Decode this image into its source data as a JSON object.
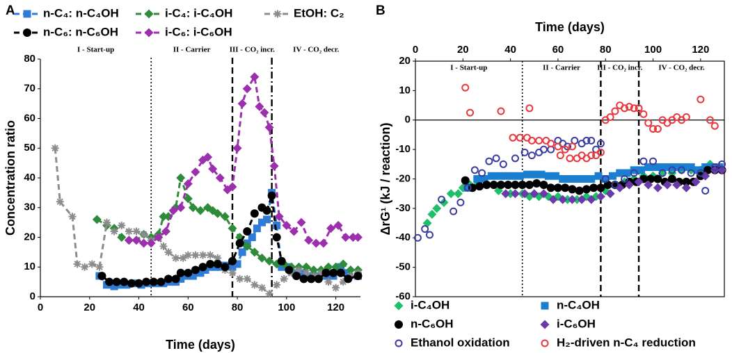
{
  "chart_data": [
    {
      "type": "line",
      "panel": "A",
      "xlabel": "Time (days)",
      "ylabel": "Concentration ratio",
      "xlim": [
        0,
        130
      ],
      "xticks": [
        0,
        20,
        40,
        60,
        80,
        100,
        120
      ],
      "ylim": [
        0,
        80
      ],
      "yticks": [
        0,
        10,
        20,
        30,
        40,
        50,
        60,
        70,
        80
      ],
      "legend": "top",
      "grid": false,
      "frame": false,
      "x_axis_position": "bottom",
      "phases": [
        "I - Start-up",
        "II - Carrier",
        "III - CO₂ incr.",
        "IV - CO₂ decr."
      ],
      "phase_lines": [
        {
          "x": 45,
          "style": "dotted"
        },
        {
          "x": 78,
          "style": "dashed"
        },
        {
          "x": 94,
          "style": "dashdot"
        }
      ],
      "series": [
        {
          "name": "n-C₄: n-C₄OH",
          "color": "#2f7bd6",
          "marker": "square",
          "x": [
            24,
            27,
            30,
            32,
            35,
            38,
            41,
            44,
            47,
            50,
            52,
            55,
            57,
            60,
            62,
            65,
            67,
            69,
            71,
            73,
            75,
            78,
            80,
            82,
            84,
            86,
            88,
            90,
            92,
            94,
            96,
            98,
            101,
            104,
            107,
            110,
            113,
            116,
            119,
            122,
            125,
            129
          ],
          "values": [
            7,
            4,
            3.5,
            4,
            4,
            4.5,
            4,
            4.5,
            4.5,
            4.5,
            5,
            5,
            6,
            7,
            7,
            8,
            9,
            10,
            10,
            10,
            10.5,
            10,
            11,
            15,
            18,
            20,
            23,
            25,
            26,
            35,
            24,
            10,
            10,
            8,
            8,
            7,
            7,
            7,
            7,
            10,
            8,
            7
          ]
        },
        {
          "name": "i-C₄: i-C₄OH",
          "color": "#2e8b3a",
          "marker": "diamond",
          "x": [
            23,
            27,
            30,
            33,
            36,
            39,
            42,
            45,
            48,
            50,
            52,
            55,
            57,
            60,
            62,
            65,
            68,
            70,
            72,
            75,
            78,
            81,
            84,
            87,
            90,
            93,
            96,
            99,
            102,
            105,
            108,
            111,
            114,
            117,
            120,
            123,
            126,
            129
          ],
          "values": [
            26,
            24,
            23,
            20,
            19,
            19,
            21,
            20,
            21,
            27,
            27,
            30,
            40,
            33,
            30,
            29,
            30,
            29,
            28,
            27,
            23,
            20,
            17,
            15,
            13,
            12,
            11,
            11,
            10,
            10,
            10,
            9,
            9,
            10,
            10,
            11,
            9,
            9
          ]
        },
        {
          "name": "EtOH: C₂",
          "color": "#8c8c8c",
          "marker": "asterisk",
          "x": [
            6,
            8,
            13,
            15,
            18,
            21,
            24,
            27,
            30,
            33,
            36,
            39,
            42,
            45,
            48,
            50,
            52,
            55,
            58,
            60,
            63,
            66,
            69,
            72,
            75,
            78,
            81,
            84,
            87,
            90,
            93,
            96,
            99,
            102,
            105,
            108,
            111,
            114,
            117,
            120,
            123,
            126,
            129
          ],
          "values": [
            50,
            32,
            27,
            11,
            10,
            11,
            10,
            25,
            22,
            24,
            22,
            22,
            21,
            19,
            20,
            17,
            15,
            13,
            13,
            14,
            14,
            14,
            14,
            13,
            9,
            8,
            6,
            6,
            4,
            3,
            1,
            4,
            6,
            8,
            9,
            8,
            7,
            8,
            5,
            3,
            5,
            7,
            8
          ]
        },
        {
          "name": "n-C₆: n-C₆OH",
          "color": "#000000",
          "marker": "circle",
          "x": [
            25,
            28,
            31,
            34,
            37,
            40,
            43,
            46,
            49,
            52,
            55,
            57,
            60,
            63,
            66,
            69,
            72,
            75,
            78,
            81,
            84,
            87,
            90,
            92,
            94,
            96,
            98,
            101,
            104,
            107,
            110,
            113,
            116,
            119,
            122,
            125,
            129
          ],
          "values": [
            7,
            5,
            5,
            5,
            4.5,
            4.5,
            5,
            5,
            5,
            6,
            6,
            8,
            8,
            9,
            10,
            11,
            11,
            10,
            12,
            18,
            22,
            28,
            30,
            29,
            34,
            20,
            12,
            9,
            7,
            6,
            6,
            6,
            8,
            8,
            8,
            6,
            7
          ]
        },
        {
          "name": "i-C₆: i-C₆OH",
          "color": "#9b2fae",
          "marker": "diamond",
          "x": [
            36,
            39,
            42,
            45,
            48,
            51,
            54,
            57,
            60,
            63,
            66,
            68,
            70,
            73,
            76,
            78,
            80,
            82,
            84,
            87,
            89,
            91,
            93,
            95,
            97,
            100,
            103,
            106,
            109,
            112,
            115,
            118,
            121,
            124,
            127,
            129
          ],
          "values": [
            19,
            19,
            18,
            18,
            20,
            22,
            29,
            30,
            38,
            42,
            46,
            47,
            43,
            40,
            36,
            37,
            50,
            65,
            70,
            74,
            64,
            62,
            57,
            44,
            27,
            24,
            22,
            25,
            19,
            18,
            18,
            23,
            24,
            20,
            20,
            20
          ]
        }
      ]
    },
    {
      "type": "scatter",
      "panel": "B",
      "xlabel": "Time (days)",
      "ylabel": "ΔrG¹ (kJ / reaction)",
      "xlim": [
        0,
        130
      ],
      "xticks": [
        0,
        20,
        40,
        60,
        80,
        100,
        120
      ],
      "ylim": [
        -60,
        20
      ],
      "yticks": [
        -60,
        -50,
        -40,
        -30,
        -20,
        -10,
        0,
        10,
        20
      ],
      "legend": "bottom",
      "grid": false,
      "frame": true,
      "zero_line": true,
      "x_axis_position": "top",
      "phases": [
        "I - Start-up",
        "II - Carrier",
        "III - CO₂ incr.",
        "IV - CO₂ decr."
      ],
      "phase_lines": [
        {
          "x": 45,
          "style": "dotted"
        },
        {
          "x": 78,
          "style": "dashed"
        },
        {
          "x": 94,
          "style": "dashed"
        }
      ],
      "series": [
        {
          "name": "i-C₄OH",
          "color": "#1fbf6a",
          "marker": "diamond",
          "x": [
            5,
            7,
            9,
            12,
            15,
            18,
            20,
            23,
            26,
            30,
            35,
            40,
            45,
            48,
            52,
            56,
            60,
            64,
            68,
            72,
            76,
            80,
            84,
            88,
            92,
            96,
            100,
            104,
            108,
            112,
            116,
            120,
            124,
            128
          ],
          "values": [
            -35,
            -32,
            -30,
            -28,
            -25,
            -25,
            -23,
            -22,
            -22,
            -22,
            -24,
            -25,
            -25,
            -26,
            -26,
            -26,
            -26,
            -27,
            -27,
            -26,
            -26,
            -24,
            -22,
            -21,
            -20,
            -19,
            -19,
            -18,
            -18,
            -17,
            -17,
            -17,
            -15,
            -16
          ]
        },
        {
          "name": "n-C₄OH",
          "color": "#1b7fd1",
          "marker": "square",
          "x": [
            22,
            26,
            29,
            32,
            35,
            38,
            41,
            44,
            47,
            50,
            53,
            56,
            59,
            62,
            65,
            68,
            71,
            74,
            77,
            80,
            83,
            86,
            89,
            92,
            95,
            98,
            101,
            104,
            107,
            110,
            113,
            116,
            119,
            122,
            125,
            128
          ],
          "values": [
            -23,
            -20,
            -20,
            -19,
            -19,
            -19,
            -19,
            -19,
            -18.5,
            -18.5,
            -18.5,
            -19,
            -19,
            -20,
            -20,
            -20,
            -20,
            -20,
            -19,
            -20,
            -19,
            -18,
            -18,
            -17,
            -17,
            -16,
            -16,
            -16,
            -16,
            -16,
            -16,
            -16,
            -17,
            -16,
            -16,
            -16
          ]
        },
        {
          "name": "n-C₆OH",
          "color": "#000000",
          "marker": "circle",
          "x": [
            21,
            24,
            27,
            30,
            33,
            36,
            39,
            42,
            45,
            48,
            51,
            54,
            57,
            60,
            63,
            66,
            69,
            72,
            75,
            78,
            81,
            84,
            87,
            90,
            93,
            96,
            99,
            102,
            105,
            108,
            111,
            114,
            117,
            120,
            123,
            126,
            129
          ],
          "values": [
            -20.5,
            -23,
            -22.5,
            -22,
            -22,
            -22,
            -22,
            -22,
            -22,
            -22,
            -21.5,
            -22,
            -23,
            -23,
            -23,
            -23.5,
            -24,
            -23.5,
            -23,
            -23,
            -22,
            -22,
            -22,
            -21,
            -21,
            -20,
            -20,
            -20,
            -21,
            -20,
            -21,
            -21,
            -21,
            -19,
            -17,
            -17,
            -17
          ]
        },
        {
          "name": "i-C₆OH",
          "color": "#6a3aa8",
          "marker": "diamond",
          "x": [
            38,
            42,
            46,
            50,
            54,
            58,
            62,
            66,
            70,
            74,
            78,
            82,
            86,
            90,
            94,
            98,
            102,
            106,
            110,
            114,
            118,
            122,
            126,
            129
          ],
          "values": [
            -25,
            -25,
            -25,
            -25,
            -25,
            -27,
            -27,
            -27,
            -27,
            -27,
            -26,
            -25,
            -23,
            -22,
            -21,
            -22,
            -23,
            -22,
            -22,
            -23,
            -21,
            -19,
            -17,
            -17
          ]
        },
        {
          "name": "Ethanol oxidation",
          "color": "#3b3ba0",
          "marker": "open-circle",
          "x": [
            1,
            4,
            6,
            11,
            16,
            19,
            22,
            25,
            28,
            31,
            34,
            37,
            42,
            46,
            49,
            52,
            54,
            57,
            60,
            62,
            64,
            67,
            70,
            72,
            74,
            76,
            78,
            80,
            84,
            88,
            92,
            96,
            100,
            104,
            108,
            112,
            116,
            120,
            122,
            126,
            129
          ],
          "values": [
            -40,
            -37,
            -39,
            -27,
            -31,
            -28,
            -23,
            -17,
            -18,
            -14,
            -13,
            -15,
            -13,
            -11,
            -12,
            -11,
            -10,
            -10,
            -7,
            -8,
            -9,
            -7,
            -8,
            -7,
            -7,
            -10,
            -8,
            -20,
            -22,
            -20,
            -18,
            -14,
            -14,
            -18,
            -17,
            -17,
            -18,
            -18,
            -24,
            -16,
            -15
          ]
        },
        {
          "name": "H₂-driven n-C₄ reduction",
          "color": "#e8383d",
          "marker": "open-circle",
          "x": [
            21,
            23,
            36,
            41,
            44,
            47,
            48,
            49,
            52,
            55,
            57,
            60,
            61,
            63,
            65,
            66,
            68,
            70,
            72,
            74,
            76,
            78,
            80,
            82,
            84,
            86,
            88,
            90,
            92,
            94,
            96,
            98,
            100,
            102,
            104,
            106,
            108,
            110,
            112,
            114,
            120,
            124,
            126
          ],
          "values": [
            11,
            2.5,
            3,
            -6,
            -6,
            -6,
            4,
            -7,
            -7,
            -7,
            -8,
            -9,
            -12,
            -10,
            -13,
            -9,
            -13,
            -12,
            -13,
            -12,
            -12,
            -11,
            0,
            1,
            3,
            5,
            4,
            4.5,
            4,
            4,
            2,
            -1,
            -3,
            -3,
            0,
            -1,
            0,
            1,
            0,
            1,
            7,
            0,
            -2
          ]
        }
      ]
    }
  ]
}
